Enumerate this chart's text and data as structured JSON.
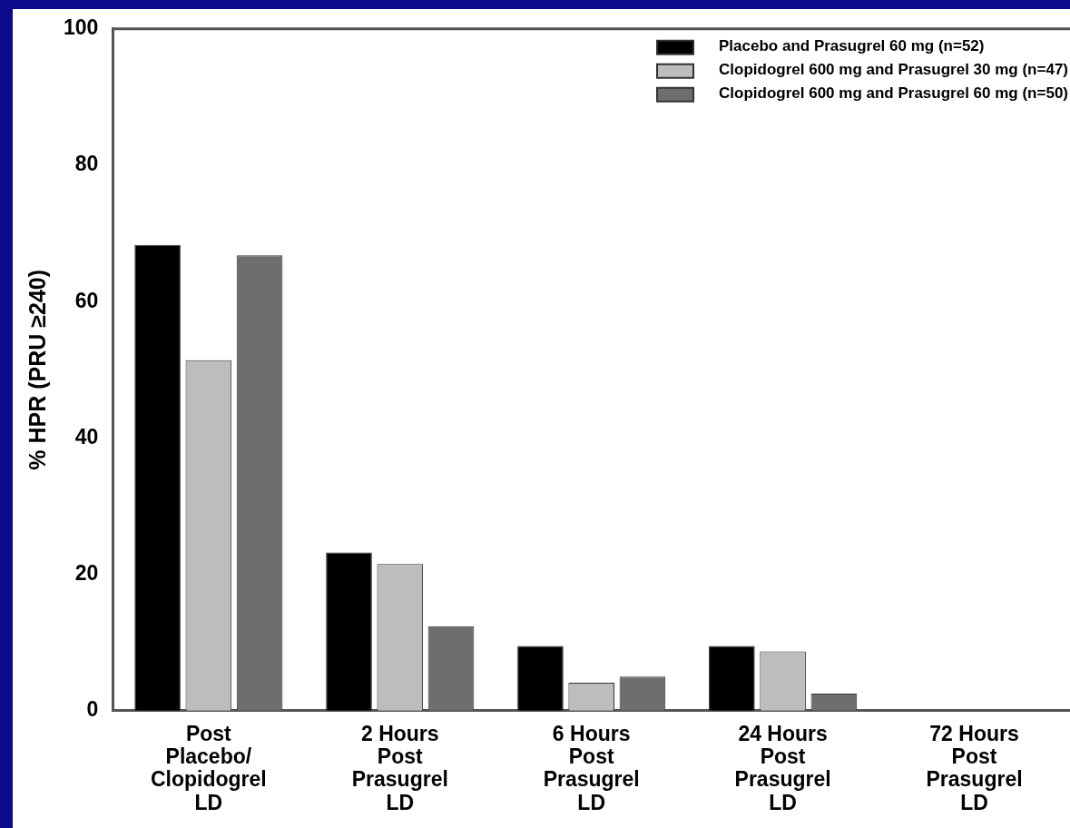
{
  "chart_data": {
    "type": "bar",
    "ylabel": "% HPR (PRU ≥240)",
    "categories": [
      "Post\nPlacebo/\nClopidogrel\nLD",
      "2 Hours\nPost\nPrasugrel\nLD",
      "6 Hours\nPost\nPrasugrel\nLD",
      "24 Hours\nPost\nPrasugrel\nLD",
      "72 Hours\nPost\nPrasugrel\nLD"
    ],
    "series": [
      {
        "name": "Placebo and Prasugrel 60 mg (n=52)",
        "color": "#000000",
        "values": [
          68.3,
          23.2,
          9.5,
          9.5,
          0
        ]
      },
      {
        "name": "Clopidogrel 600 mg and Prasugrel 30 mg (n=47)",
        "color": "#bdbdbd",
        "values": [
          51.4,
          21.5,
          4.1,
          8.7,
          0
        ]
      },
      {
        "name": "Clopidogrel 600 mg and Prasugrel 60 mg (n=50)",
        "color": "#6e6e6e",
        "values": [
          66.8,
          12.4,
          5.0,
          2.5,
          0
        ]
      }
    ],
    "ylim": [
      0,
      100
    ],
    "yticks": [
      0,
      20,
      40,
      60,
      80,
      100
    ],
    "grid": false,
    "legend": "top right"
  }
}
